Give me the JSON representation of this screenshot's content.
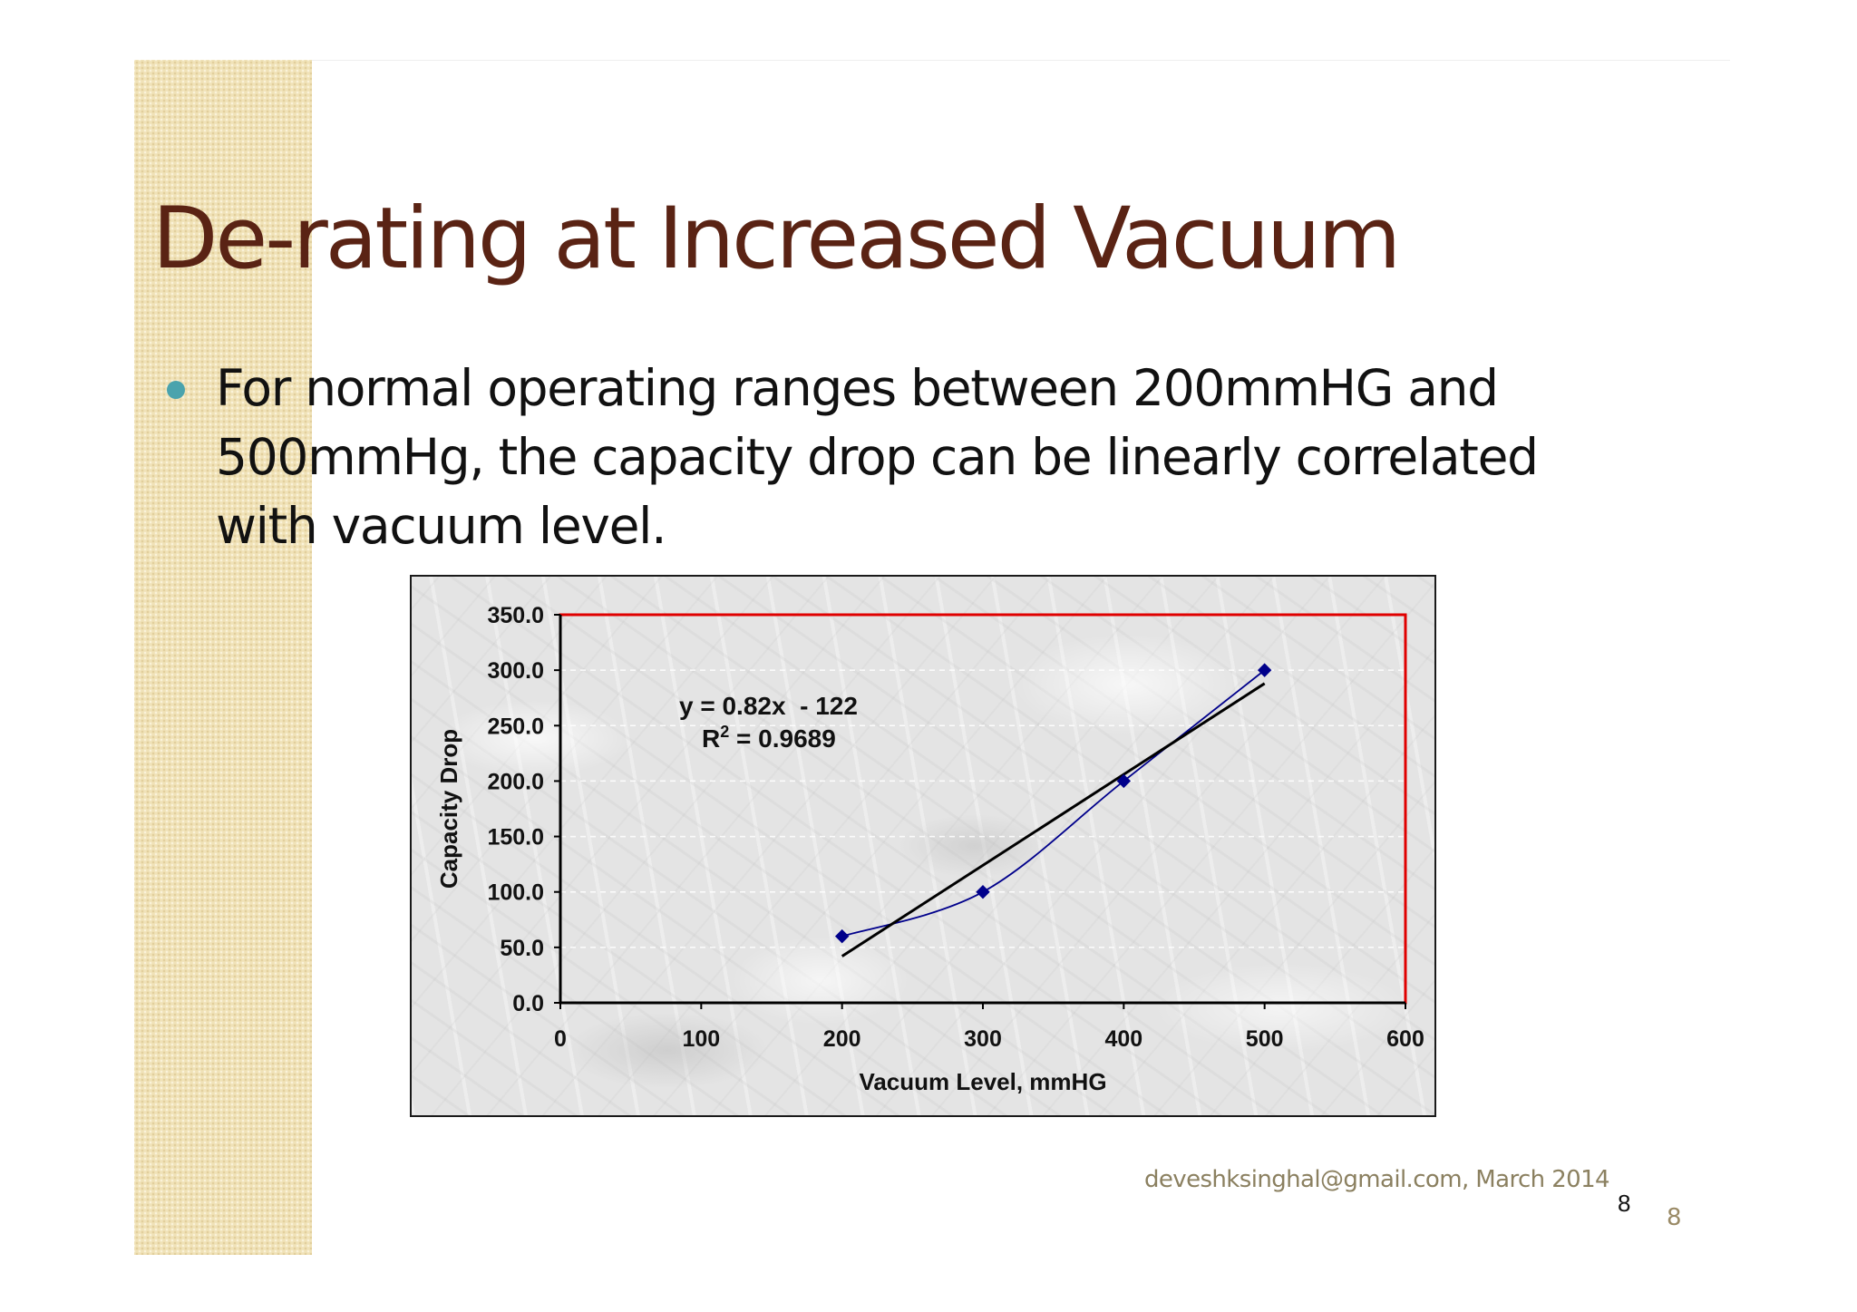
{
  "slide": {
    "title": "De-rating at Increased Vacuum",
    "bullets": [
      "For normal operating ranges between 200mmHG and 500mmHg, the capacity drop can be linearly correlated with vacuum level."
    ],
    "footer": "deveshksinghal@gmail.com, March 2014",
    "slide_number": "8",
    "slide_number_secondary": "8"
  },
  "colors": {
    "title": "#5a2314",
    "bullet": "#4aa3ad",
    "plot_border": "#e00000",
    "series": "#00008b",
    "trendline": "#000000"
  },
  "chart_data": {
    "type": "scatter",
    "xlabel": "Vacuum Level, mmHG",
    "ylabel": "Capacity Drop",
    "xlim": [
      0,
      600
    ],
    "ylim": [
      0,
      350
    ],
    "x_ticks": [
      "0",
      "100",
      "200",
      "300",
      "400",
      "500",
      "600"
    ],
    "y_ticks": [
      "0.0",
      "50.0",
      "100.0",
      "150.0",
      "200.0",
      "250.0",
      "300.0",
      "350.0"
    ],
    "grid": "horizontal dashed",
    "legend": "none",
    "series": [
      {
        "x": [
          200,
          300,
          400,
          500
        ],
        "y": [
          60,
          100,
          200,
          300
        ],
        "marker": "diamond",
        "line": "smooth"
      }
    ],
    "trendline": {
      "type": "linear",
      "slope": 0.82,
      "intercept": -122,
      "x_range": [
        200,
        500
      ]
    },
    "annotation": {
      "equation": "y = 0.82x  - 122",
      "r2_prefix": "R",
      "r2_sup": "2",
      "r2_rest": " = 0.9689"
    }
  }
}
